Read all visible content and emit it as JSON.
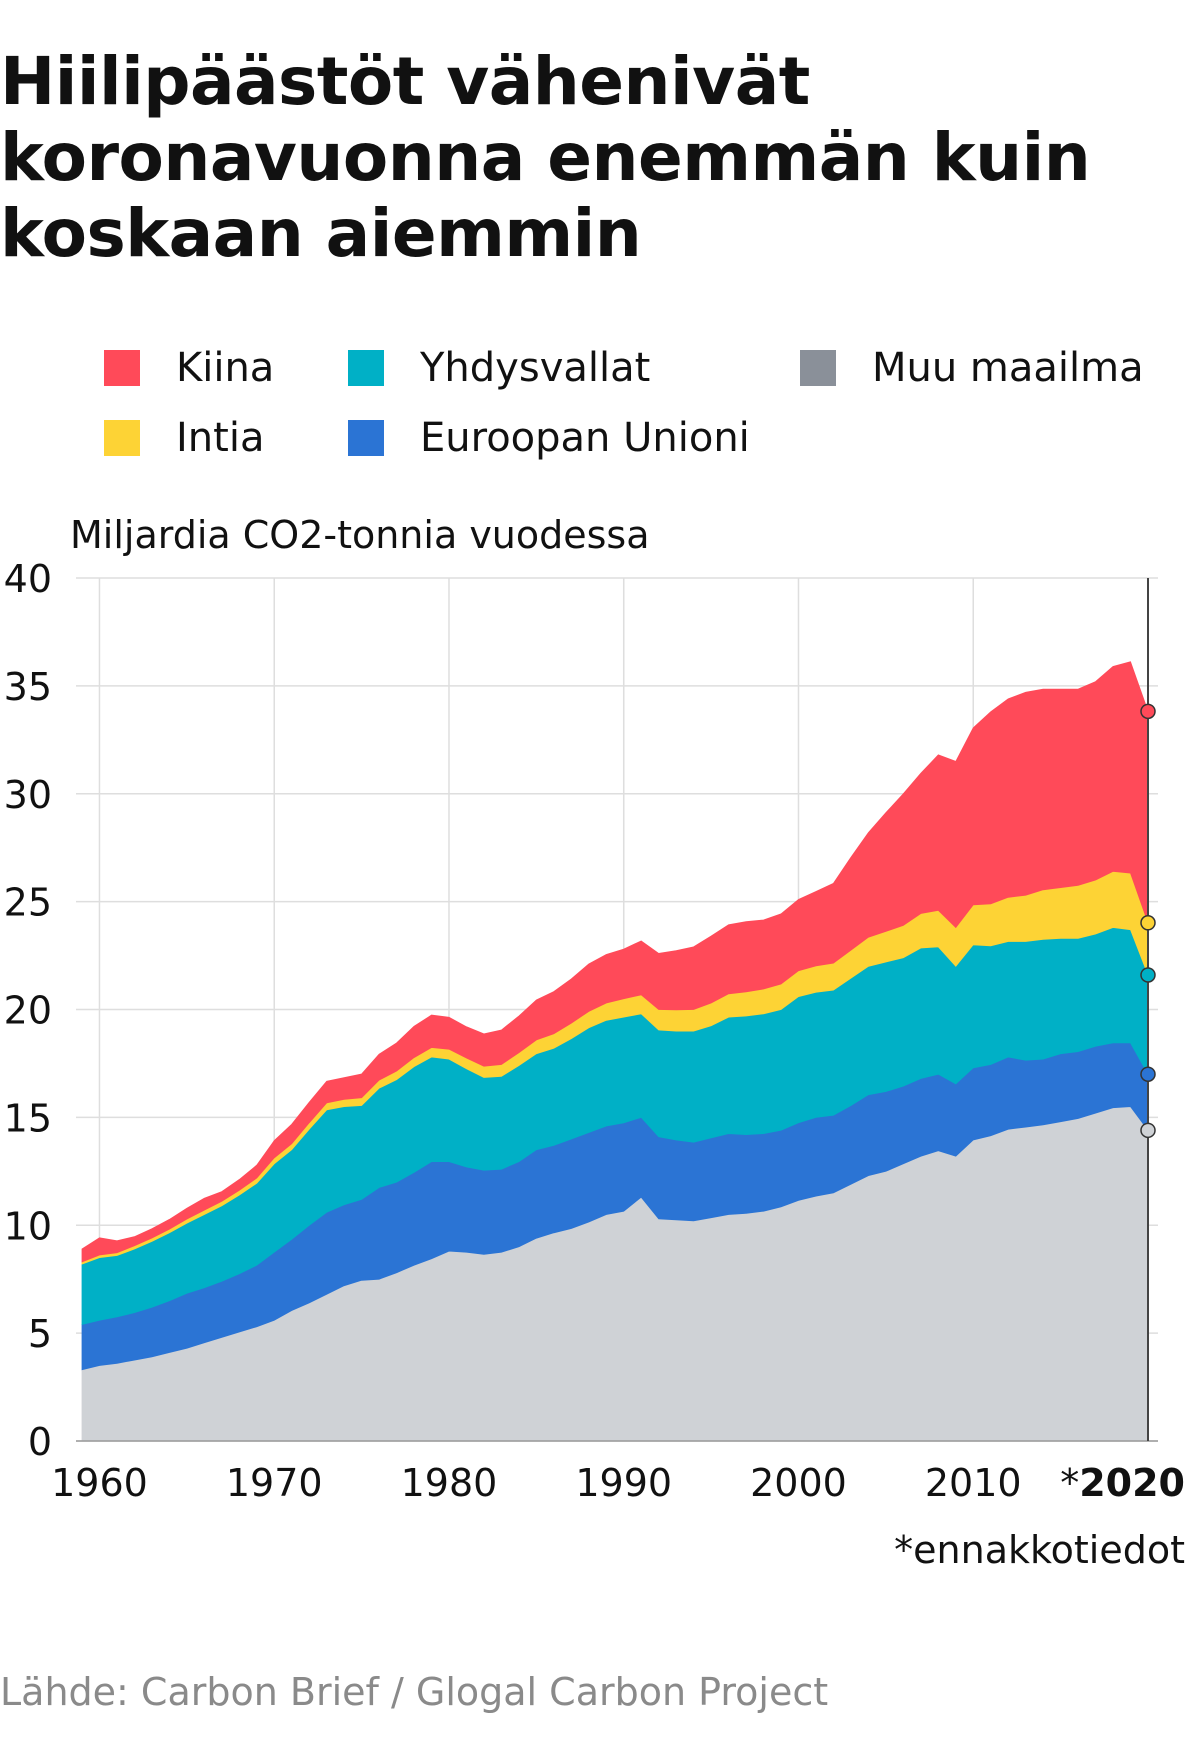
{
  "title": "Hiilipäästöt vähenivät koronavuonna enemmän kuin koskaan aiemmin",
  "source": "Lähde: Carbon Brief / Glogal Carbon Project",
  "chart_data": {
    "type": "area",
    "stacked": true,
    "ylabel": "Miljardia CO2-tonnia vuodessa",
    "ylim": [
      0,
      40
    ],
    "yticks": [
      0,
      5,
      10,
      15,
      20,
      25,
      30,
      35,
      40
    ],
    "xlim": [
      1959,
      2020
    ],
    "xticks": [
      {
        "value": 1960,
        "label": "1960"
      },
      {
        "value": 1970,
        "label": "1970"
      },
      {
        "value": 1980,
        "label": "1980"
      },
      {
        "value": 1990,
        "label": "1990"
      },
      {
        "value": 2000,
        "label": "2000"
      },
      {
        "value": 2010,
        "label": "2010"
      },
      {
        "value": 2020,
        "prefix": "*",
        "label": "2020"
      }
    ],
    "footnote": "*ennakkotiedot",
    "grid": true,
    "legend_position": "top",
    "x": [
      1959,
      1960,
      1961,
      1962,
      1963,
      1964,
      1965,
      1966,
      1967,
      1968,
      1969,
      1970,
      1971,
      1972,
      1973,
      1974,
      1975,
      1976,
      1977,
      1978,
      1979,
      1980,
      1981,
      1982,
      1983,
      1984,
      1985,
      1986,
      1987,
      1988,
      1989,
      1990,
      1991,
      1992,
      1993,
      1994,
      1995,
      1996,
      1997,
      1998,
      1999,
      2000,
      2001,
      2002,
      2003,
      2004,
      2005,
      2006,
      2007,
      2008,
      2009,
      2010,
      2011,
      2012,
      2013,
      2014,
      2015,
      2016,
      2017,
      2018,
      2019,
      2020
    ],
    "series": [
      {
        "name": "Muu maailma",
        "color": "#cfd2d6",
        "marker_color": "#cfd2d6",
        "values": [
          3.3,
          3.5,
          3.6,
          3.75,
          3.9,
          4.1,
          4.3,
          4.55,
          4.8,
          5.05,
          5.3,
          5.6,
          6.05,
          6.4,
          6.8,
          7.2,
          7.45,
          7.5,
          7.8,
          8.15,
          8.45,
          8.8,
          8.75,
          8.65,
          8.75,
          9.0,
          9.4,
          9.65,
          9.85,
          10.15,
          10.5,
          10.65,
          11.3,
          10.3,
          10.25,
          10.2,
          10.35,
          10.5,
          10.55,
          10.65,
          10.85,
          11.15,
          11.35,
          11.5,
          11.9,
          12.3,
          12.5,
          12.85,
          13.2,
          13.45,
          13.2,
          13.95,
          14.15,
          14.45,
          14.55,
          14.65,
          14.8,
          14.95,
          15.2,
          15.45,
          15.5,
          14.4
        ]
      },
      {
        "name": "Euroopan Unioni",
        "color": "#2b74d4",
        "marker_color": "#2b74d4",
        "values": [
          2.1,
          2.1,
          2.15,
          2.2,
          2.3,
          2.4,
          2.55,
          2.55,
          2.6,
          2.7,
          2.85,
          3.15,
          3.3,
          3.6,
          3.8,
          3.75,
          3.75,
          4.25,
          4.2,
          4.3,
          4.5,
          4.15,
          3.95,
          3.9,
          3.85,
          3.95,
          4.1,
          4.05,
          4.15,
          4.15,
          4.1,
          4.1,
          3.7,
          3.8,
          3.7,
          3.65,
          3.7,
          3.75,
          3.65,
          3.6,
          3.55,
          3.6,
          3.65,
          3.6,
          3.65,
          3.75,
          3.7,
          3.6,
          3.6,
          3.55,
          3.35,
          3.35,
          3.3,
          3.35,
          3.1,
          3.05,
          3.15,
          3.1,
          3.1,
          3.0,
          2.95,
          2.6
        ]
      },
      {
        "name": "Yhdysvallat",
        "color": "#00b0c6",
        "marker_color": "#00b0c6",
        "values": [
          2.8,
          2.9,
          2.85,
          2.95,
          3.05,
          3.15,
          3.25,
          3.4,
          3.5,
          3.65,
          3.8,
          4.1,
          4.15,
          4.45,
          4.75,
          4.55,
          4.35,
          4.6,
          4.75,
          4.9,
          4.85,
          4.75,
          4.55,
          4.3,
          4.3,
          4.45,
          4.45,
          4.5,
          4.65,
          4.85,
          4.9,
          4.9,
          4.8,
          4.95,
          5.05,
          5.15,
          5.2,
          5.4,
          5.5,
          5.55,
          5.6,
          5.85,
          5.8,
          5.8,
          5.9,
          5.95,
          6.0,
          5.95,
          6.05,
          5.9,
          5.45,
          5.7,
          5.5,
          5.35,
          5.5,
          5.55,
          5.35,
          5.25,
          5.2,
          5.35,
          5.25,
          4.6
        ]
      },
      {
        "name": "Intia",
        "color": "#fdd335",
        "marker_color": "#fdd335",
        "values": [
          0.1,
          0.12,
          0.13,
          0.15,
          0.16,
          0.17,
          0.19,
          0.2,
          0.21,
          0.22,
          0.24,
          0.27,
          0.28,
          0.3,
          0.32,
          0.34,
          0.36,
          0.38,
          0.4,
          0.42,
          0.44,
          0.46,
          0.5,
          0.52,
          0.55,
          0.6,
          0.64,
          0.68,
          0.72,
          0.76,
          0.8,
          0.85,
          0.88,
          0.95,
          0.98,
          1.0,
          1.05,
          1.08,
          1.12,
          1.15,
          1.18,
          1.2,
          1.22,
          1.25,
          1.3,
          1.35,
          1.42,
          1.5,
          1.6,
          1.7,
          1.8,
          1.85,
          1.95,
          2.05,
          2.15,
          2.3,
          2.35,
          2.45,
          2.5,
          2.6,
          2.62,
          2.42
        ]
      },
      {
        "name": "Kiina",
        "color": "#ff4a59",
        "marker_color": "#ff4a59",
        "values": [
          0.6,
          0.8,
          0.55,
          0.42,
          0.43,
          0.45,
          0.5,
          0.55,
          0.45,
          0.5,
          0.6,
          0.8,
          0.9,
          0.95,
          1.0,
          1.0,
          1.1,
          1.2,
          1.3,
          1.45,
          1.5,
          1.48,
          1.45,
          1.5,
          1.6,
          1.7,
          1.85,
          1.95,
          2.05,
          2.2,
          2.25,
          2.3,
          2.5,
          2.6,
          2.75,
          2.9,
          3.1,
          3.2,
          3.25,
          3.2,
          3.25,
          3.3,
          3.45,
          3.7,
          4.3,
          4.85,
          5.5,
          6.1,
          6.5,
          7.2,
          7.7,
          8.2,
          8.9,
          9.2,
          9.4,
          9.3,
          9.2,
          9.1,
          9.2,
          9.5,
          9.8,
          9.8
        ]
      }
    ]
  }
}
